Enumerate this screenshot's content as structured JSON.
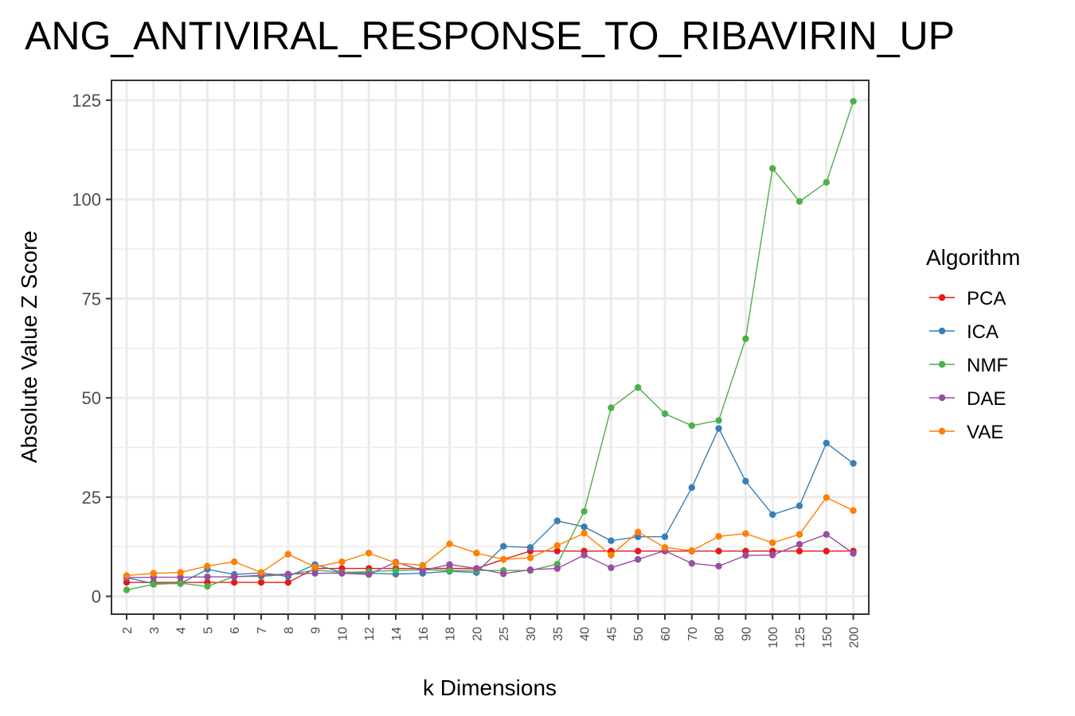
{
  "chart_data": {
    "type": "line",
    "title": "ANG_ANTIVIRAL_RESPONSE_TO_RIBAVIRIN_UP",
    "xlabel": "k Dimensions",
    "ylabel": "Absolute Value Z Score",
    "categories": [
      "2",
      "3",
      "4",
      "5",
      "6",
      "7",
      "8",
      "9",
      "10",
      "12",
      "14",
      "16",
      "18",
      "20",
      "25",
      "30",
      "35",
      "40",
      "45",
      "50",
      "60",
      "70",
      "80",
      "90",
      "100",
      "125",
      "150",
      "200"
    ],
    "ylim": [
      -4.5,
      130
    ],
    "yticks": [
      0,
      25,
      50,
      75,
      100,
      125
    ],
    "grid": true,
    "legend": {
      "title": "Algorithm",
      "position": "right"
    },
    "series": [
      {
        "name": "PCA",
        "color": "#e41a1c",
        "values": [
          3.5,
          3.5,
          3.5,
          3.5,
          3.5,
          3.5,
          3.5,
          7.0,
          7.0,
          7.0,
          7.0,
          7.0,
          7.0,
          7.0,
          9.3,
          11.4,
          11.4,
          11.4,
          11.4,
          11.4,
          11.4,
          11.4,
          11.4,
          11.4,
          11.4,
          11.4,
          11.4,
          11.4
        ]
      },
      {
        "name": "ICA",
        "color": "#377eb8",
        "values": [
          4.7,
          3.2,
          3.2,
          6.8,
          5.5,
          5.9,
          5.0,
          8.0,
          6.0,
          5.8,
          5.6,
          5.8,
          6.3,
          6.0,
          12.6,
          12.3,
          19.0,
          17.5,
          14.0,
          15.0,
          15.0,
          27.4,
          42.3,
          29.0,
          20.6,
          22.8,
          38.6,
          33.5
        ]
      },
      {
        "name": "NMF",
        "color": "#4daf4a",
        "values": [
          1.6,
          3.0,
          3.3,
          2.5,
          5.0,
          5.0,
          5.5,
          6.6,
          6.0,
          6.2,
          6.5,
          6.7,
          6.5,
          6.5,
          6.5,
          6.5,
          8.1,
          21.4,
          47.5,
          52.6,
          46.0,
          43.0,
          44.3,
          64.9,
          107.8,
          99.5,
          104.3,
          124.7
        ]
      },
      {
        "name": "DAE",
        "color": "#984ea3",
        "values": [
          4.7,
          4.8,
          4.8,
          4.9,
          4.9,
          5.3,
          5.6,
          5.8,
          5.8,
          5.5,
          8.6,
          6.5,
          8.0,
          7.0,
          5.7,
          6.7,
          7.0,
          10.4,
          7.2,
          9.3,
          11.5,
          8.3,
          7.6,
          10.3,
          10.4,
          13.1,
          15.6,
          10.8
        ]
      },
      {
        "name": "VAE",
        "color": "#ff7f00",
        "values": [
          5.2,
          5.8,
          6.0,
          7.6,
          8.7,
          6.0,
          10.6,
          7.4,
          8.7,
          10.9,
          8.4,
          7.8,
          13.2,
          10.9,
          9.3,
          9.7,
          12.8,
          15.9,
          10.4,
          16.2,
          12.3,
          11.5,
          15.1,
          15.8,
          13.5,
          15.6,
          24.9,
          21.6
        ]
      }
    ]
  }
}
